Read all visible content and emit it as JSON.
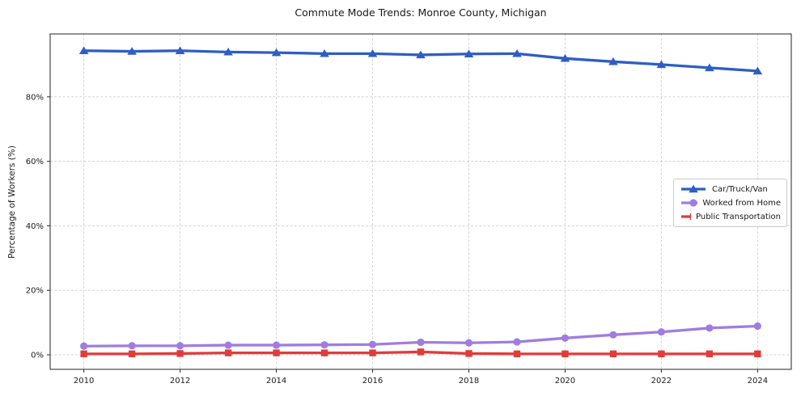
{
  "title": "Commute Mode Trends: Monroe County, Michigan",
  "chart_data": {
    "type": "line",
    "title": "Commute Mode Trends: Monroe County, Michigan",
    "xlabel": "",
    "ylabel": "Percentage of Workers (%)",
    "x": [
      2010,
      2011,
      2012,
      2013,
      2014,
      2015,
      2016,
      2017,
      2018,
      2019,
      2020,
      2021,
      2022,
      2023,
      2024
    ],
    "x_ticks": [
      2010,
      2012,
      2014,
      2016,
      2018,
      2020,
      2022,
      2024
    ],
    "x_tick_labels": [
      "2010",
      "2012",
      "2014",
      "2016",
      "2018",
      "2020",
      "2022",
      "2024"
    ],
    "y_ticks": [
      0,
      20,
      40,
      60,
      80
    ],
    "y_tick_labels": [
      "0%",
      "20%",
      "40%",
      "60%",
      "80%"
    ],
    "xlim": [
      2009.3,
      2024.7
    ],
    "ylim": [
      -4.5,
      99.5
    ],
    "grid": true,
    "grid_style": "dashed",
    "legend_position": "center right",
    "series": [
      {
        "name": "Car/Truck/Van",
        "color": "#2e5ec4",
        "marker": "triangle",
        "values": [
          94.3,
          94.1,
          94.3,
          93.9,
          93.7,
          93.4,
          93.4,
          93.0,
          93.3,
          93.4,
          91.9,
          90.9,
          90.0,
          89.0,
          88.0
        ]
      },
      {
        "name": "Worked from Home",
        "color": "#9f7de0",
        "marker": "circle",
        "values": [
          2.7,
          2.8,
          2.8,
          3.0,
          3.0,
          3.1,
          3.2,
          3.9,
          3.7,
          4.0,
          5.2,
          6.2,
          7.1,
          8.3,
          8.9
        ]
      },
      {
        "name": "Public Transportation",
        "color": "#e23b3b",
        "marker": "square",
        "values": [
          0.3,
          0.3,
          0.4,
          0.6,
          0.6,
          0.6,
          0.6,
          0.9,
          0.4,
          0.3,
          0.3,
          0.3,
          0.3,
          0.3,
          0.3
        ]
      }
    ],
    "colors": {
      "frame": "#262626",
      "grid": "#cfcfcf",
      "background": "#ffffff"
    }
  }
}
